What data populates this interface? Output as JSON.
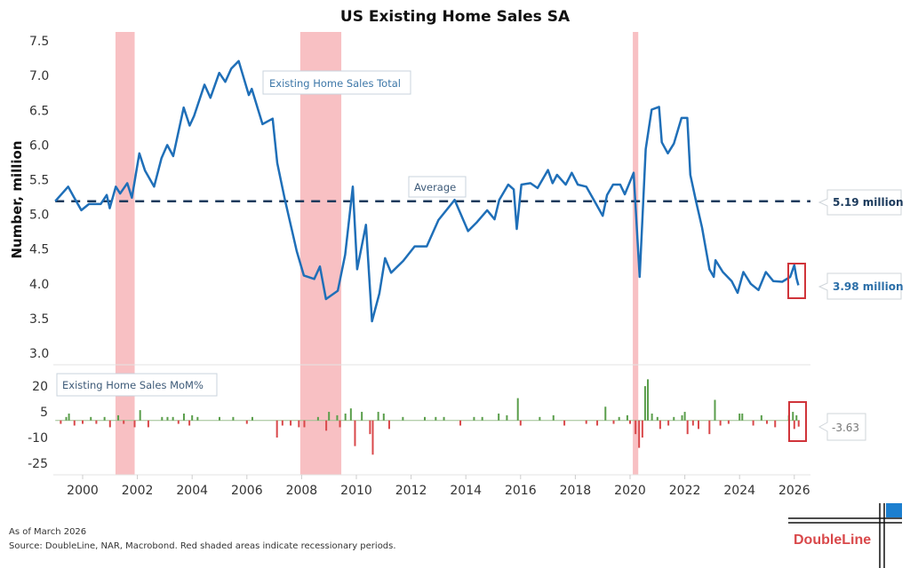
{
  "chart_data": [
    {
      "type": "line",
      "title": "US Existing Home Sales SA",
      "ylabel": "Number, million",
      "ylim": [
        3.0,
        7.5
      ],
      "yticks": [
        "7.5",
        "7.0",
        "6.5",
        "6.0",
        "5.5",
        "5.0",
        "4.5",
        "4.0",
        "3.5",
        "3.0"
      ],
      "series_label": "Existing Home Sales Total",
      "average_label": "Average",
      "average_value": 5.19,
      "average_callout": "5.19 million",
      "latest_callout": "3.98 million",
      "line_color": "#1f6fb8",
      "average_color": "#1b3a5c",
      "points": [
        [
          1999.0,
          5.19
        ],
        [
          1999.47,
          5.4
        ],
        [
          1999.68,
          5.25
        ],
        [
          1999.95,
          5.06
        ],
        [
          2000.23,
          5.15
        ],
        [
          2000.66,
          5.15
        ],
        [
          2000.88,
          5.28
        ],
        [
          2000.99,
          5.09
        ],
        [
          2001.21,
          5.4
        ],
        [
          2001.37,
          5.3
        ],
        [
          2001.63,
          5.45
        ],
        [
          2001.8,
          5.24
        ],
        [
          2002.07,
          5.88
        ],
        [
          2002.28,
          5.63
        ],
        [
          2002.61,
          5.4
        ],
        [
          2002.88,
          5.81
        ],
        [
          2003.09,
          6.0
        ],
        [
          2003.31,
          5.84
        ],
        [
          2003.69,
          6.54
        ],
        [
          2003.91,
          6.28
        ],
        [
          2004.07,
          6.42
        ],
        [
          2004.45,
          6.87
        ],
        [
          2004.67,
          6.68
        ],
        [
          2004.99,
          7.04
        ],
        [
          2005.21,
          6.91
        ],
        [
          2005.43,
          7.1
        ],
        [
          2005.7,
          7.21
        ],
        [
          2006.07,
          6.72
        ],
        [
          2006.18,
          6.81
        ],
        [
          2006.57,
          6.3
        ],
        [
          2006.94,
          6.38
        ],
        [
          2007.11,
          5.74
        ],
        [
          2007.38,
          5.23
        ],
        [
          2007.82,
          4.47
        ],
        [
          2008.08,
          4.12
        ],
        [
          2008.46,
          4.07
        ],
        [
          2008.67,
          4.25
        ],
        [
          2008.89,
          3.78
        ],
        [
          2009.32,
          3.9
        ],
        [
          2009.59,
          4.42
        ],
        [
          2009.87,
          5.4
        ],
        [
          2010.03,
          4.21
        ],
        [
          2010.35,
          4.85
        ],
        [
          2010.57,
          3.46
        ],
        [
          2010.84,
          3.86
        ],
        [
          2011.05,
          4.37
        ],
        [
          2011.27,
          4.16
        ],
        [
          2011.71,
          4.33
        ],
        [
          2012.13,
          4.54
        ],
        [
          2012.57,
          4.54
        ],
        [
          2013.0,
          4.92
        ],
        [
          2013.59,
          5.21
        ],
        [
          2014.08,
          4.76
        ],
        [
          2014.41,
          4.89
        ],
        [
          2014.78,
          5.06
        ],
        [
          2015.05,
          4.93
        ],
        [
          2015.22,
          5.21
        ],
        [
          2015.55,
          5.43
        ],
        [
          2015.75,
          5.36
        ],
        [
          2015.86,
          4.79
        ],
        [
          2016.03,
          5.43
        ],
        [
          2016.36,
          5.45
        ],
        [
          2016.62,
          5.38
        ],
        [
          2017.0,
          5.64
        ],
        [
          2017.17,
          5.45
        ],
        [
          2017.33,
          5.57
        ],
        [
          2017.65,
          5.43
        ],
        [
          2017.87,
          5.6
        ],
        [
          2018.09,
          5.43
        ],
        [
          2018.4,
          5.4
        ],
        [
          2018.73,
          5.17
        ],
        [
          2019.0,
          4.98
        ],
        [
          2019.16,
          5.28
        ],
        [
          2019.38,
          5.43
        ],
        [
          2019.64,
          5.43
        ],
        [
          2019.81,
          5.29
        ],
        [
          2020.13,
          5.6
        ],
        [
          2020.35,
          4.1
        ],
        [
          2020.57,
          5.94
        ],
        [
          2020.79,
          6.51
        ],
        [
          2021.06,
          6.55
        ],
        [
          2021.16,
          6.04
        ],
        [
          2021.38,
          5.88
        ],
        [
          2021.6,
          6.02
        ],
        [
          2021.88,
          6.39
        ],
        [
          2022.09,
          6.39
        ],
        [
          2022.2,
          5.57
        ],
        [
          2022.41,
          5.19
        ],
        [
          2022.63,
          4.81
        ],
        [
          2022.9,
          4.21
        ],
        [
          2023.06,
          4.1
        ],
        [
          2023.12,
          4.34
        ],
        [
          2023.39,
          4.17
        ],
        [
          2023.71,
          4.04
        ],
        [
          2023.93,
          3.87
        ],
        [
          2024.14,
          4.17
        ],
        [
          2024.41,
          4.0
        ],
        [
          2024.69,
          3.91
        ],
        [
          2024.96,
          4.17
        ],
        [
          2025.23,
          4.04
        ],
        [
          2025.56,
          4.03
        ],
        [
          2025.85,
          4.1
        ],
        [
          2026.0,
          4.27
        ],
        [
          2026.08,
          4.08
        ],
        [
          2026.15,
          3.98
        ]
      ]
    },
    {
      "type": "bar",
      "series_label": "Existing Home Sales MoM%",
      "ylim": [
        -25,
        25
      ],
      "yticks": [
        "20",
        "5",
        "-10",
        "-25"
      ],
      "latest_callout": "-3.63",
      "positive_color": "#5a9e4b",
      "negative_color": "#d9484a",
      "bars": [
        [
          1999.2,
          -2
        ],
        [
          1999.4,
          2
        ],
        [
          1999.5,
          4
        ],
        [
          1999.7,
          -3
        ],
        [
          2000.0,
          -2
        ],
        [
          2000.3,
          2
        ],
        [
          2000.5,
          -2
        ],
        [
          2000.8,
          2
        ],
        [
          2001.0,
          -4
        ],
        [
          2001.3,
          3
        ],
        [
          2001.5,
          -2
        ],
        [
          2001.9,
          -4
        ],
        [
          2002.1,
          6
        ],
        [
          2002.4,
          -4
        ],
        [
          2002.9,
          2
        ],
        [
          2003.1,
          2
        ],
        [
          2003.3,
          2
        ],
        [
          2003.5,
          -2
        ],
        [
          2003.7,
          4
        ],
        [
          2003.9,
          -3
        ],
        [
          2004.0,
          3
        ],
        [
          2004.2,
          2
        ],
        [
          2005.0,
          2
        ],
        [
          2005.5,
          2
        ],
        [
          2006.0,
          -2
        ],
        [
          2006.2,
          2
        ],
        [
          2007.1,
          -10
        ],
        [
          2007.3,
          -3
        ],
        [
          2007.6,
          -3
        ],
        [
          2007.9,
          -4
        ],
        [
          2008.1,
          -4
        ],
        [
          2008.6,
          2
        ],
        [
          2008.9,
          -6
        ],
        [
          2009.0,
          5
        ],
        [
          2009.3,
          3
        ],
        [
          2009.4,
          -4
        ],
        [
          2009.6,
          4
        ],
        [
          2009.8,
          7
        ],
        [
          2009.95,
          -15
        ],
        [
          2010.2,
          5
        ],
        [
          2010.5,
          -8
        ],
        [
          2010.6,
          -20
        ],
        [
          2010.8,
          5
        ],
        [
          2011.0,
          4
        ],
        [
          2011.2,
          -5
        ],
        [
          2011.7,
          2
        ],
        [
          2012.5,
          2
        ],
        [
          2012.9,
          2
        ],
        [
          2013.2,
          2
        ],
        [
          2013.8,
          -3
        ],
        [
          2014.3,
          2
        ],
        [
          2014.6,
          2
        ],
        [
          2015.2,
          4
        ],
        [
          2015.5,
          3
        ],
        [
          2015.9,
          13
        ],
        [
          2016.0,
          -3
        ],
        [
          2016.7,
          2
        ],
        [
          2017.2,
          3
        ],
        [
          2017.6,
          -3
        ],
        [
          2018.4,
          -2
        ],
        [
          2018.8,
          -3
        ],
        [
          2019.1,
          8
        ],
        [
          2019.4,
          -2
        ],
        [
          2019.6,
          2
        ],
        [
          2019.9,
          3
        ],
        [
          2020.0,
          -2
        ],
        [
          2020.2,
          -8
        ],
        [
          2020.33,
          -16
        ],
        [
          2020.45,
          -10
        ],
        [
          2020.55,
          20
        ],
        [
          2020.65,
          24
        ],
        [
          2020.8,
          4
        ],
        [
          2021.0,
          2
        ],
        [
          2021.1,
          -5
        ],
        [
          2021.4,
          -3
        ],
        [
          2021.6,
          2
        ],
        [
          2021.9,
          3
        ],
        [
          2022.0,
          5
        ],
        [
          2022.1,
          -8
        ],
        [
          2022.3,
          -3
        ],
        [
          2022.5,
          -5
        ],
        [
          2022.9,
          -8
        ],
        [
          2023.1,
          12
        ],
        [
          2023.3,
          -3
        ],
        [
          2023.6,
          -2
        ],
        [
          2024.0,
          4
        ],
        [
          2024.1,
          4
        ],
        [
          2024.5,
          -3
        ],
        [
          2024.8,
          3
        ],
        [
          2025.0,
          -2
        ],
        [
          2025.3,
          -4
        ],
        [
          2025.8,
          3
        ],
        [
          2025.95,
          5
        ],
        [
          2026.0,
          -5
        ],
        [
          2026.08,
          3
        ],
        [
          2026.16,
          -3.63
        ]
      ]
    }
  ],
  "xticks": [
    "2000",
    "2002",
    "2004",
    "2006",
    "2008",
    "2010",
    "2012",
    "2014",
    "2016",
    "2018",
    "2020",
    "2022",
    "2024",
    "2026"
  ],
  "xlim": [
    1999.0,
    2026.6
  ],
  "recessions": [
    [
      2001.2,
      2001.9
    ],
    [
      2007.95,
      2009.45
    ],
    [
      2020.1,
      2020.3
    ]
  ],
  "recession_color": "#f8c0c3",
  "highlight_color": "#d0343a",
  "footer": {
    "as_of": "As of March 2026",
    "source": "Source: DoubleLine, NAR, Macrobond. Red shaded areas indicate recessionary periods."
  },
  "logo": {
    "text": "DoubleLine",
    "color": "#d9484a",
    "accent": "#1c7fcf"
  }
}
